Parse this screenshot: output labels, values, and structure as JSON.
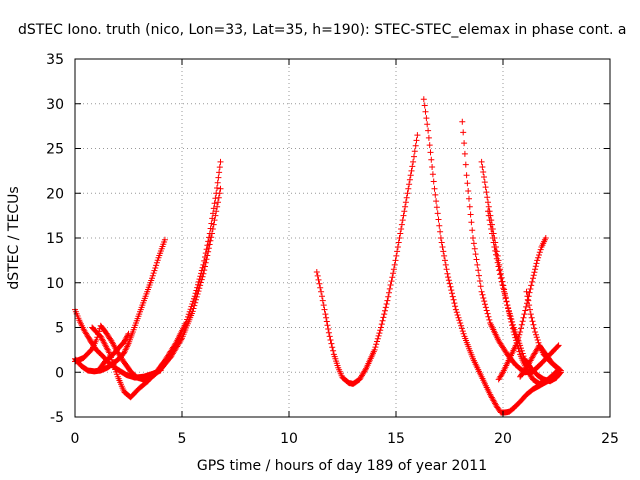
{
  "chart_data": {
    "type": "scatter",
    "title": "dSTEC Iono. truth (nico, Lon=33, Lat=35, h=190): STEC-STEC_elemax in phase cont. a",
    "xlabel": "GPS time / hours of day 189 of year 2011",
    "ylabel": "dSTEC  / TECUs",
    "xlim": [
      0,
      25
    ],
    "ylim": [
      -5,
      35
    ],
    "xticks": [
      "0",
      "5",
      "10",
      "15",
      "20",
      "25"
    ],
    "yticks": [
      "-5",
      "0",
      "5",
      "10",
      "15",
      "20",
      "25",
      "30",
      "35"
    ],
    "grid": true,
    "marker": "+",
    "color": "#ff0000",
    "series": [
      {
        "x": [
          0.0,
          0.2,
          0.4,
          0.6,
          0.8,
          1.0,
          1.3,
          1.6,
          2.0,
          2.4,
          2.8,
          3.2,
          3.6,
          4.0
        ],
        "y": [
          7.0,
          5.8,
          4.8,
          4.0,
          3.2,
          2.5,
          1.8,
          1.0,
          0.3,
          -0.3,
          -0.6,
          -0.5,
          -0.2,
          0.2
        ]
      },
      {
        "x": [
          0.0,
          0.3,
          0.6,
          0.9,
          1.2,
          1.5,
          1.8,
          2.1,
          2.3,
          2.5,
          2.7,
          3.0,
          3.3,
          3.6,
          3.9,
          4.2
        ],
        "y": [
          1.5,
          0.7,
          0.2,
          0.1,
          0.2,
          0.5,
          1.0,
          1.6,
          2.2,
          3.2,
          4.5,
          6.5,
          8.5,
          10.5,
          12.8,
          14.8
        ]
      },
      {
        "x": [
          0.0,
          0.4,
          0.8,
          1.0,
          1.2,
          1.4,
          1.7,
          2.0,
          2.3,
          2.6,
          2.9,
          3.2,
          3.6,
          4.0,
          4.5,
          5.0,
          5.5,
          6.0,
          6.4,
          6.8
        ],
        "y": [
          1.2,
          1.6,
          2.6,
          3.6,
          5.2,
          4.6,
          3.5,
          2.2,
          1.1,
          0.1,
          -0.6,
          -0.8,
          -0.5,
          0.3,
          1.8,
          3.8,
          6.8,
          11.0,
          15.5,
          20.5
        ]
      },
      {
        "x": [
          0.8,
          1.2,
          1.6,
          2.0,
          2.3,
          2.6,
          3.0,
          3.4,
          3.8,
          4.2,
          4.7,
          5.2,
          5.6,
          6.0,
          6.3,
          6.6,
          6.8
        ],
        "y": [
          5.0,
          4.0,
          2.2,
          -0.5,
          -2.2,
          -2.8,
          -1.8,
          -1.0,
          0.0,
          1.3,
          3.2,
          5.6,
          8.5,
          12.0,
          15.5,
          20.0,
          23.5
        ]
      },
      {
        "x": [
          1.1,
          1.4,
          1.7,
          2.0,
          2.3,
          2.5
        ],
        "y": [
          0.2,
          1.2,
          1.8,
          2.6,
          3.4,
          4.3
        ]
      },
      {
        "x": [
          11.3,
          11.5,
          11.7,
          11.9,
          12.1,
          12.3,
          12.5,
          12.8,
          13.0,
          13.3,
          13.6,
          14.0,
          14.3,
          14.6,
          14.9,
          15.2,
          15.5,
          15.8,
          16.0
        ],
        "y": [
          11.2,
          9.0,
          6.5,
          4.0,
          2.0,
          0.5,
          -0.6,
          -1.2,
          -1.3,
          -0.8,
          0.4,
          2.5,
          5.0,
          8.0,
          11.5,
          15.5,
          19.5,
          23.5,
          26.5
        ]
      },
      {
        "x": [
          16.3,
          16.5,
          16.8,
          17.1,
          17.4,
          17.8,
          18.2,
          18.6,
          19.0,
          19.4,
          19.7,
          19.9,
          20.1,
          20.3,
          20.5
        ],
        "y": [
          30.5,
          27.0,
          20.5,
          15.0,
          11.0,
          7.0,
          4.0,
          1.5,
          -0.5,
          -2.5,
          -3.8,
          -4.5,
          -4.5,
          -4.4,
          -4.0
        ]
      },
      {
        "x": [
          20.5,
          20.8,
          21.1,
          21.4,
          21.7,
          22.0,
          22.3,
          22.6,
          22.7
        ],
        "y": [
          -4.0,
          -3.3,
          -2.5,
          -1.9,
          -1.5,
          -1.1,
          -0.7,
          -0.2,
          0.0
        ]
      },
      {
        "x": [
          18.1,
          18.3,
          18.6,
          19.0,
          19.4,
          19.8,
          20.2,
          20.6,
          21.0,
          21.4,
          21.8,
          22.2,
          22.6
        ],
        "y": [
          28.0,
          22.0,
          15.0,
          9.0,
          5.5,
          3.5,
          2.0,
          0.8,
          0.0,
          0.1,
          1.0,
          2.0,
          3.0
        ]
      },
      {
        "x": [
          19.0,
          19.3,
          19.6,
          19.9,
          20.2,
          20.5,
          20.8,
          21.1,
          21.4,
          21.7,
          22.0,
          22.3,
          22.6
        ],
        "y": [
          23.5,
          19.0,
          15.0,
          11.0,
          7.5,
          4.5,
          2.0,
          0.3,
          -0.8,
          -1.3,
          -1.0,
          -0.4,
          0.3
        ]
      },
      {
        "x": [
          19.3,
          19.6,
          19.9,
          20.2,
          20.5,
          20.8,
          21.0,
          21.3,
          21.6,
          21.9,
          22.2,
          22.5,
          22.7
        ],
        "y": [
          18.0,
          14.0,
          10.5,
          7.5,
          5.0,
          3.0,
          1.5,
          0.5,
          -0.3,
          -0.8,
          -1.0,
          -0.6,
          0.0
        ]
      },
      {
        "x": [
          20.8,
          21.1,
          21.4,
          21.7,
          22.0,
          22.3,
          22.6
        ],
        "y": [
          -0.5,
          0.5,
          1.8,
          3.0,
          2.0,
          1.0,
          0.3
        ]
      },
      {
        "x": [
          19.8,
          20.0,
          20.3,
          20.6,
          20.8,
          21.0,
          21.2,
          21.4,
          21.6,
          21.8,
          22.0
        ],
        "y": [
          -0.8,
          0.0,
          1.5,
          3.0,
          4.5,
          6.5,
          8.5,
          10.5,
          12.5,
          14.0,
          15.0
        ]
      },
      {
        "x": [
          21.1,
          21.3,
          21.5,
          21.7,
          21.9,
          22.2,
          22.5,
          22.7
        ],
        "y": [
          9.0,
          6.5,
          4.5,
          3.0,
          2.0,
          1.2,
          0.6,
          0.2
        ]
      }
    ]
  }
}
